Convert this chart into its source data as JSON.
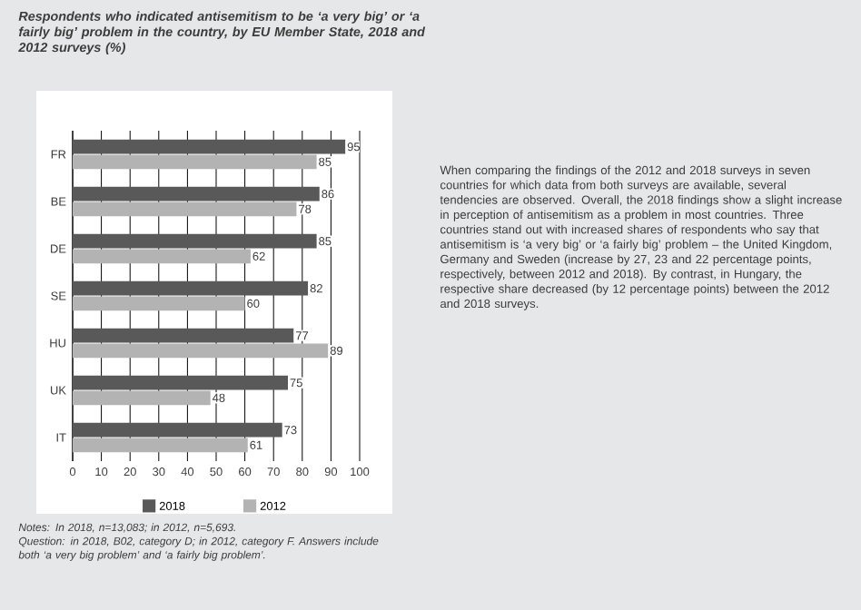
{
  "chart_data": {
    "type": "bar",
    "orientation": "horizontal",
    "title": "Respondents who indicated antisemitism to be ‘a very big’ or ‘a fairly big’ problem in the country, by EU Member State, 2018 and 2012 surveys (%)",
    "categories": [
      "FR",
      "BE",
      "DE",
      "SE",
      "HU",
      "UK",
      "IT"
    ],
    "series": [
      {
        "name": "2018",
        "color": "#595959",
        "values": [
          95,
          86,
          85,
          82,
          77,
          75,
          73
        ]
      },
      {
        "name": "2012",
        "color": "#b3b3b3",
        "values": [
          85,
          78,
          62,
          60,
          89,
          48,
          61
        ]
      }
    ],
    "xlim": [
      0,
      100
    ],
    "xticks": [
      0,
      10,
      20,
      30,
      40,
      50,
      60,
      70,
      80,
      90,
      100
    ],
    "grid": "x",
    "legend": "bottom",
    "data_labels": true,
    "annotations": [
      "Notes: In 2018, n=13,083; in 2012, n=5,693.",
      "Question: in 2018, B02, category D; in 2012, category F. Answers include both ‘a very big problem’ and ‘a fairly big problem’.",
      "When comparing the findings of the 2012 and 2018 surveys in seven countries for which data from both surveys are available, several tendencies are observed. Overall, the 2018 findings show a slight increase in perception of antisemitism as a problem in most countries. Three countries stand out with increased shares of respondents who say that antisemitism is ‘a very big’ or ‘a fairly big’ problem – the United Kingdom, Germany and Sweden (increase by 27, 23 and 22 percentage points, respectively, between 2012 and 2018). By contrast, in Hungary, the respective share decreased (by 12 percentage points) between the 2012 and 2018 surveys."
    ]
  }
}
